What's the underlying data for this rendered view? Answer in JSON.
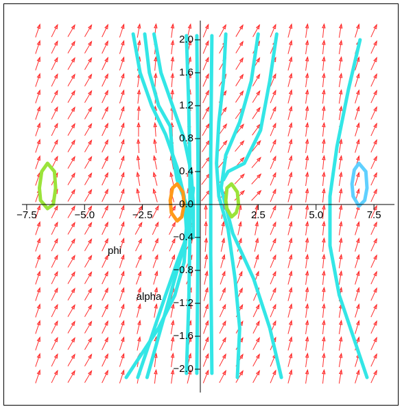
{
  "chart_data": {
    "type": "phase-portrait",
    "x_label": "phi",
    "y_label": "alpha",
    "xlim": [
      -8,
      8
    ],
    "ylim": [
      -2.2,
      2.2
    ],
    "xticks": [
      {
        "value": -7.5,
        "label": "−7.5"
      },
      {
        "value": -5,
        "label": "−5.0"
      },
      {
        "value": -2.5,
        "label": "−2.5"
      },
      {
        "value": 0,
        "label": "0.0"
      },
      {
        "value": 2.5,
        "label": "2.5"
      },
      {
        "value": 5,
        "label": "5.0"
      },
      {
        "value": 7.5,
        "label": "7.5"
      }
    ],
    "yticks": [
      {
        "value": 2,
        "label": "2.0"
      },
      {
        "value": 1.6,
        "label": "1.6"
      },
      {
        "value": 1.2,
        "label": "1.2"
      },
      {
        "value": 0.8,
        "label": "0.8"
      },
      {
        "value": 0.4,
        "label": "0.4"
      },
      {
        "value": -0.4,
        "label": "−0.4"
      },
      {
        "value": -0.8,
        "label": "−0.8"
      },
      {
        "value": -1.2,
        "label": "−1.2"
      },
      {
        "value": -1.6,
        "label": "−1.6"
      },
      {
        "value": -2,
        "label": "−2.0"
      }
    ],
    "origin_label": {
      "value": 0,
      "label": "0.0"
    },
    "field_color": "#ff2a2a",
    "series": [
      {
        "color": "#33e6e6",
        "x": [
          -2.9,
          -2.6,
          -2.1,
          -1.5,
          -1.0,
          -0.7,
          -0.6,
          -0.7,
          -1.1,
          -1.8,
          -2.5,
          -3.2
        ],
        "y": [
          2.07,
          1.6,
          1.2,
          0.85,
          0.45,
          0.1,
          -0.3,
          -0.7,
          -1.1,
          -1.5,
          -1.8,
          -2.1
        ]
      },
      {
        "color": "#33e6e6",
        "x": [
          -2.4,
          -2.2,
          -1.8,
          -1.3,
          -1.2,
          -1.0,
          -0.6,
          -0.5
        ],
        "y": [
          2.07,
          1.6,
          1.2,
          0.95,
          0.6,
          0.3,
          0.0,
          -0.3
        ]
      },
      {
        "color": "#33e6e6",
        "x": [
          -2.0,
          -1.7,
          -1.2,
          -0.7,
          -0.4,
          -0.3,
          -0.3
        ],
        "y": [
          2.07,
          1.6,
          1.2,
          0.8,
          0.4,
          0.0,
          -0.4
        ]
      },
      {
        "color": "#33e6e6",
        "x": [
          -0.6,
          -0.5,
          -0.45,
          -0.45,
          -0.5,
          -0.6
        ],
        "y": [
          2.05,
          1.2,
          0.4,
          -0.4,
          -1.2,
          -2.05
        ]
      },
      {
        "color": "#33e6e6",
        "x": [
          -0.15,
          -0.1,
          -0.1,
          -0.15
        ],
        "y": [
          2.05,
          0.5,
          -0.5,
          -2.05
        ]
      },
      {
        "color": "#33e6e6",
        "x": [
          -2.7,
          -2.1,
          -1.5,
          -1.0,
          -0.6,
          -0.4,
          -0.3
        ],
        "y": [
          -2.1,
          -1.6,
          -1.1,
          -0.7,
          -0.4,
          -0.1,
          0.2
        ]
      },
      {
        "color": "#33e6e6",
        "x": [
          -2.3,
          -1.7,
          -1.1,
          -0.7,
          -0.5
        ],
        "y": [
          -2.1,
          -1.5,
          -0.9,
          -0.5,
          -0.1
        ]
      },
      {
        "color": "#33e6e6",
        "x": [
          1.1,
          1.0,
          0.8,
          0.7,
          0.8,
          1.2,
          1.5,
          1.7,
          1.6
        ],
        "y": [
          2.07,
          1.5,
          1.0,
          0.5,
          0.1,
          -0.3,
          -0.9,
          -1.5,
          -2.1
        ]
      },
      {
        "color": "#33e6e6",
        "x": [
          2.5,
          2.2,
          1.7,
          1.1,
          0.9,
          1.4,
          2.3,
          3.0,
          3.5
        ],
        "y": [
          2.07,
          1.5,
          1.0,
          0.6,
          0.2,
          -0.35,
          -0.9,
          -1.5,
          -2.1
        ]
      },
      {
        "color": "#33e6e6",
        "x": [
          3.3,
          3.0,
          2.6,
          1.9,
          1.2,
          1.0
        ],
        "y": [
          2.07,
          1.5,
          0.9,
          0.5,
          0.4,
          0.3
        ]
      },
      {
        "color": "#33e6e6",
        "x": [
          0.5,
          0.45,
          0.45,
          0.5
        ],
        "y": [
          2.05,
          0.6,
          -0.6,
          -2.05
        ]
      },
      {
        "color": "#33e6e6",
        "x": [
          6.9,
          6.4,
          5.9,
          5.6,
          5.6,
          6.0,
          6.6,
          7.2
        ],
        "y": [
          2.0,
          1.4,
          0.7,
          0.1,
          -0.5,
          -1.1,
          -1.6,
          -2.1
        ]
      },
      {
        "color": "#9be33a",
        "x": [
          -6.6,
          -6.3,
          -6.25,
          -6.35,
          -6.6,
          -6.9,
          -6.95,
          -6.85,
          -6.6
        ],
        "y": [
          0.5,
          0.4,
          0.2,
          0.0,
          -0.05,
          0.05,
          0.2,
          0.4,
          0.5
        ]
      },
      {
        "color": "#ff9a1a",
        "x": [
          -1.0,
          -0.75,
          -0.7,
          -0.8,
          -1.0,
          -1.25,
          -1.3,
          -1.2,
          -1.0
        ],
        "y": [
          0.25,
          0.15,
          0.0,
          -0.15,
          -0.2,
          -0.1,
          0.05,
          0.2,
          0.25
        ]
      },
      {
        "color": "#9be33a",
        "x": [
          1.35,
          1.6,
          1.65,
          1.55,
          1.35,
          1.15,
          1.1,
          1.15,
          1.35
        ],
        "y": [
          0.25,
          0.15,
          0.0,
          -0.1,
          -0.15,
          -0.05,
          0.05,
          0.2,
          0.25
        ]
      },
      {
        "color": "#5fd0ff",
        "x": [
          6.85,
          7.15,
          7.2,
          7.1,
          6.85,
          6.6,
          6.55,
          6.65,
          6.85
        ],
        "y": [
          0.5,
          0.4,
          0.2,
          0.05,
          -0.02,
          0.1,
          0.25,
          0.42,
          0.5
        ]
      }
    ]
  }
}
